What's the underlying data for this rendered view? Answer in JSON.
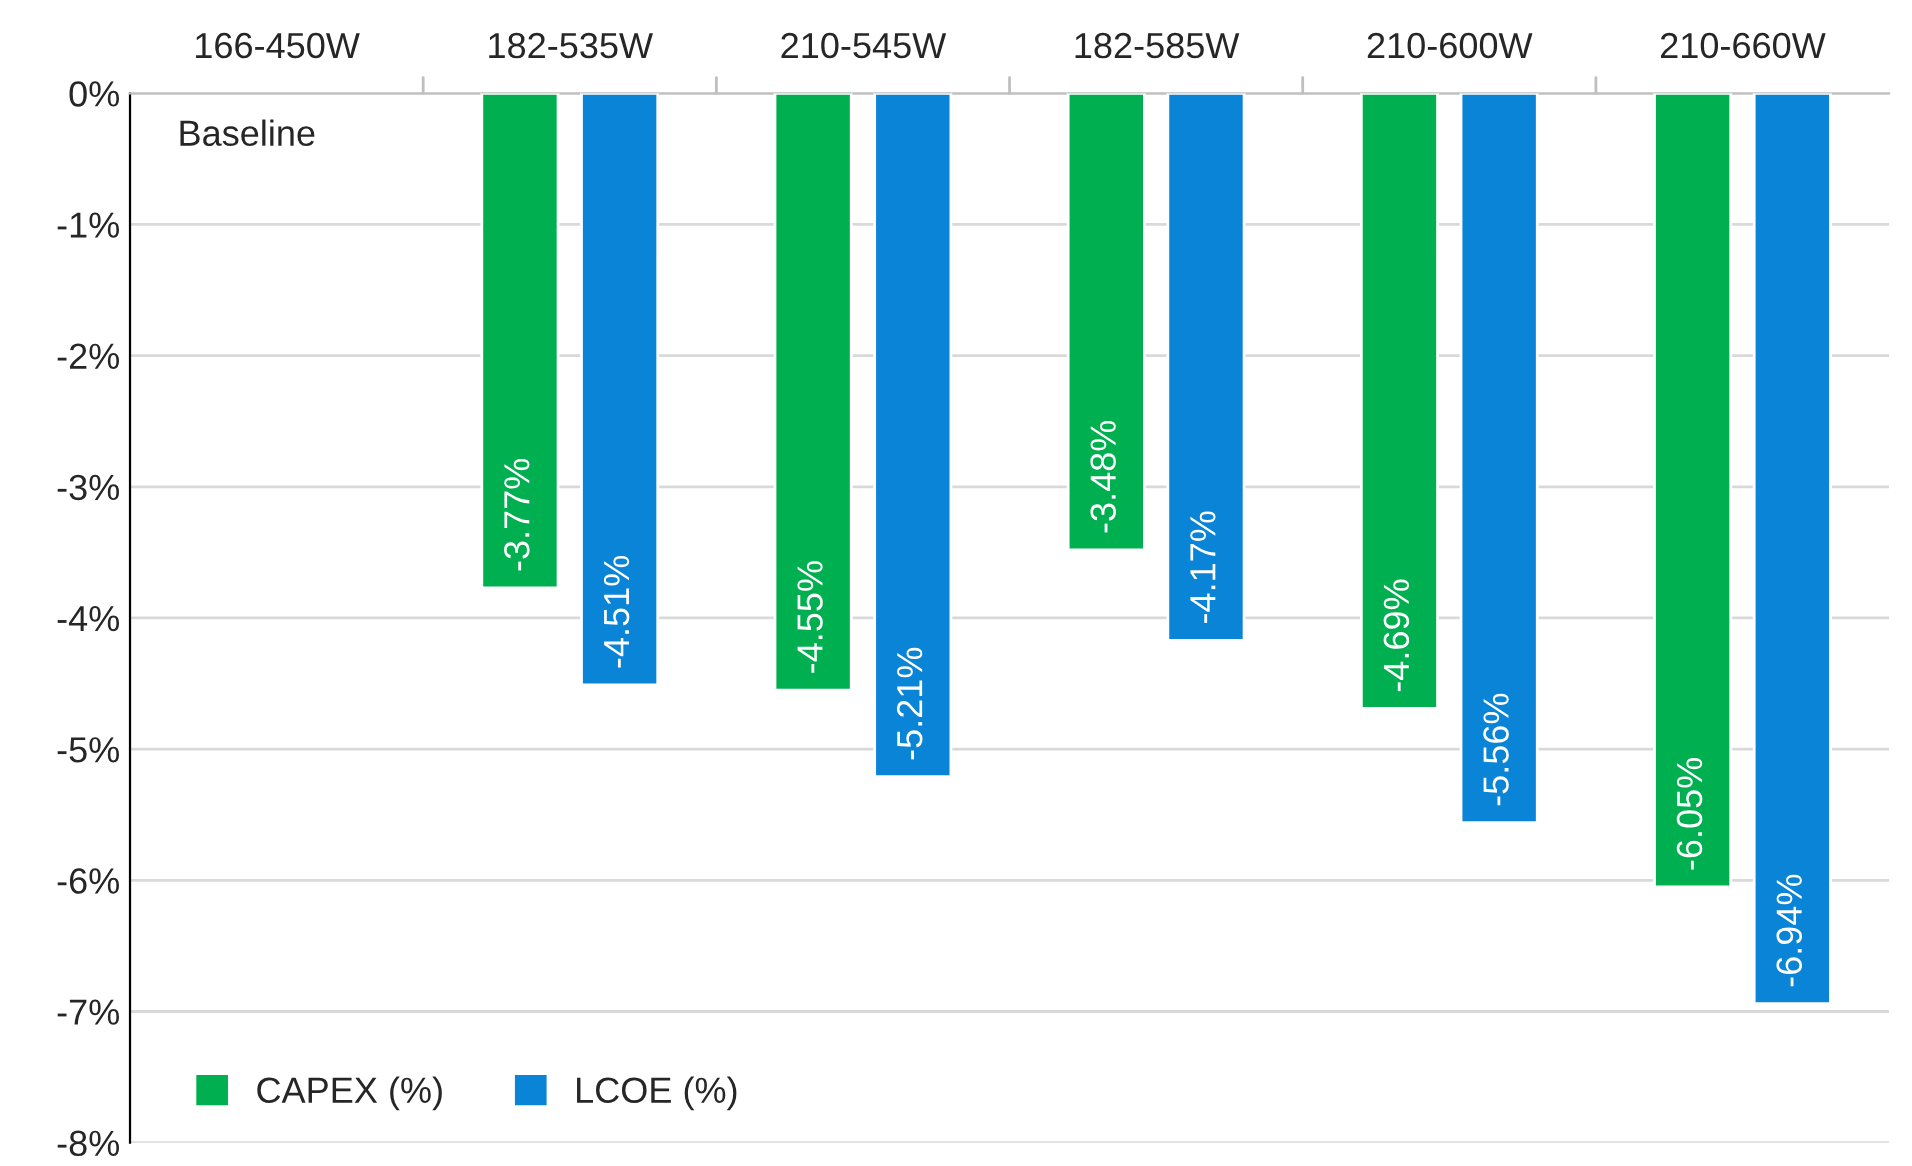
{
  "chart_data": {
    "type": "bar",
    "categories": [
      "166-450W",
      "182-535W",
      "210-545W",
      "182-585W",
      "210-600W",
      "210-660W"
    ],
    "series": [
      {
        "name": "CAPEX (%)",
        "color": "#00b050",
        "values": [
          null,
          -3.77,
          -4.55,
          -3.48,
          -4.69,
          -6.05
        ],
        "value_labels": [
          null,
          "-3.77%",
          "-4.55%",
          "-3.48%",
          "-4.69%",
          "-6.05%"
        ]
      },
      {
        "name": "LCOE (%)",
        "color": "#0a84d6",
        "values": [
          null,
          -4.51,
          -5.21,
          -4.17,
          -5.56,
          -6.94
        ],
        "value_labels": [
          null,
          "-4.51%",
          "-5.21%",
          "-4.17%",
          "-5.56%",
          "-6.94%"
        ]
      }
    ],
    "ylim": [
      -8,
      0
    ],
    "yticks": [
      {
        "value": 0,
        "label": "0%"
      },
      {
        "value": -1,
        "label": "-1%"
      },
      {
        "value": -2,
        "label": "-2%"
      },
      {
        "value": -3,
        "label": "-3%"
      },
      {
        "value": -4,
        "label": "-4%"
      },
      {
        "value": -5,
        "label": "-5%"
      },
      {
        "value": -6,
        "label": "-6%"
      },
      {
        "value": -7,
        "label": "-7%"
      },
      {
        "value": -8,
        "label": "-8%"
      }
    ],
    "annotations": [
      "Baseline"
    ],
    "grid": "y",
    "legend": "bottom left"
  }
}
